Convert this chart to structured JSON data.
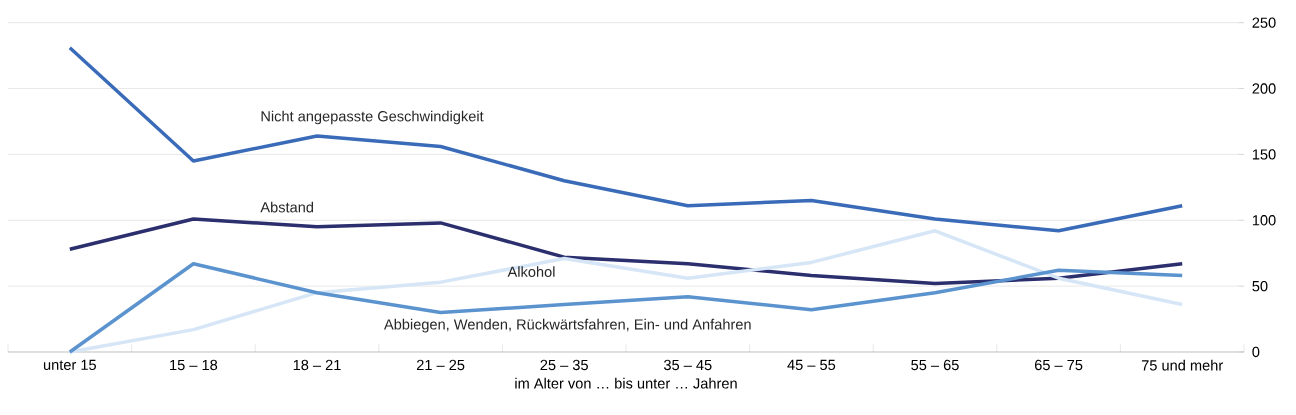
{
  "chart_data": {
    "type": "line",
    "xlabel": "im Alter von … bis unter … Jahren",
    "categories": [
      "unter 15",
      "15 – 18",
      "18 – 21",
      "21 – 25",
      "25 – 35",
      "35 – 45",
      "45 – 55",
      "55 – 65",
      "65 – 75",
      "75 und mehr"
    ],
    "ylim": [
      0,
      250
    ],
    "yticks": [
      0,
      50,
      100,
      150,
      200,
      250
    ],
    "grid": "y",
    "marker": "none",
    "line_style": "solid",
    "series": [
      {
        "name": "Nicht angepasste Geschwindigkeit",
        "color": "#3a6bb8",
        "values": [
          231,
          145,
          164,
          156,
          130,
          111,
          115,
          101,
          92,
          111
        ]
      },
      {
        "name": "Abstand",
        "color": "#2b2f6e",
        "values": [
          78,
          101,
          95,
          98,
          72,
          67,
          58,
          52,
          56,
          67
        ]
      },
      {
        "name": "Alkohol",
        "color": "#d6e6f6",
        "values": [
          0,
          17,
          45,
          53,
          71,
          56,
          68,
          92,
          56,
          36
        ]
      },
      {
        "name": "Abbiegen, Wenden, Rückwärtsfahren, Ein- und Anfahren",
        "color": "#5b93cf",
        "values": [
          0,
          67,
          45,
          30,
          36,
          42,
          32,
          45,
          62,
          58
        ]
      }
    ]
  }
}
